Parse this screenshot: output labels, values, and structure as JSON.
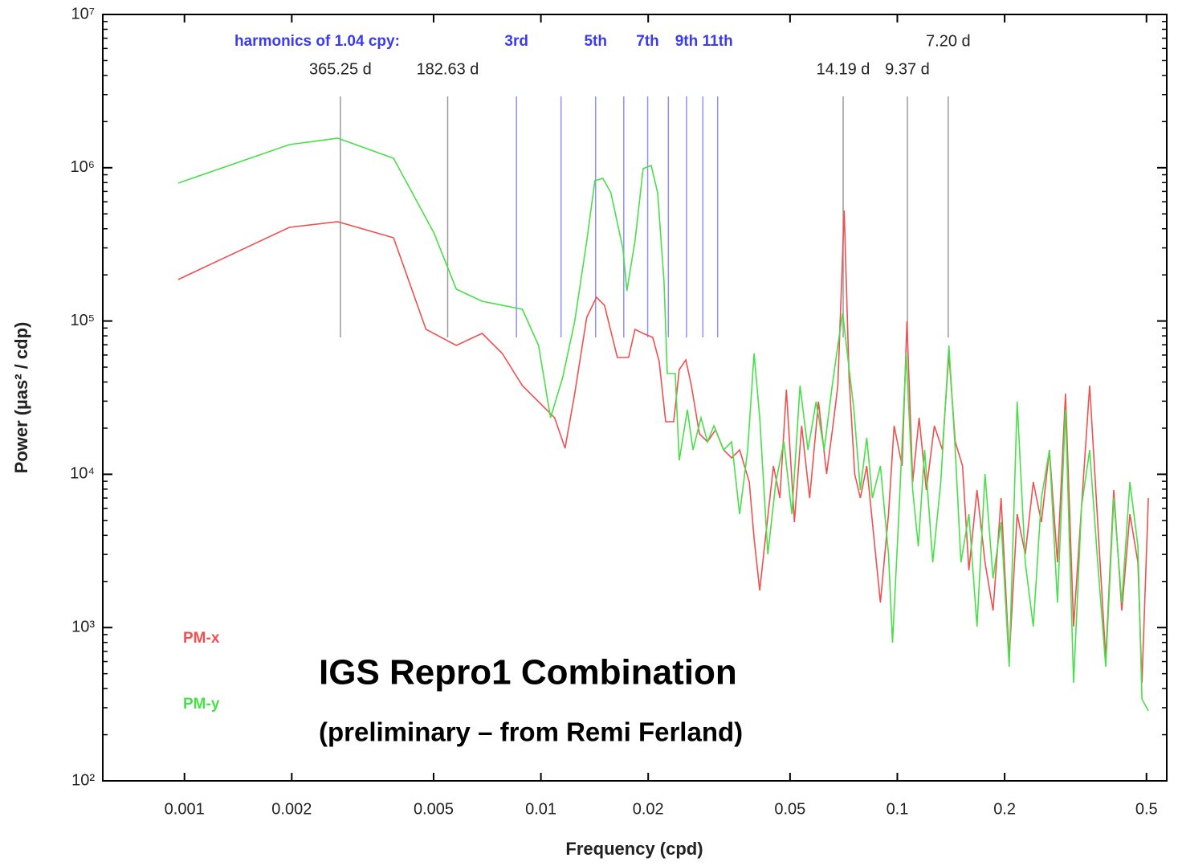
{
  "chart_data": {
    "type": "line",
    "x_label": "Frequency (cpd)",
    "y_label": "Power (µas² / cdp)",
    "xscale": "log",
    "yscale": "log",
    "grid": false,
    "legend": "lower left",
    "xlim": [
      0.00059,
      0.57
    ],
    "ylim": [
      100,
      10000000
    ],
    "xticks": [
      0.001,
      0.002,
      0.005,
      0.01,
      0.02,
      0.05,
      0.1,
      0.2,
      0.5
    ],
    "yticks": [
      {
        "value": 100,
        "label": "10²"
      },
      {
        "value": 1000,
        "label": "10³"
      },
      {
        "value": 10000,
        "label": "10⁴"
      },
      {
        "value": 100000,
        "label": "10⁵"
      },
      {
        "value": 1000000,
        "label": "10⁶"
      },
      {
        "value": 10000000,
        "label": "10⁷"
      }
    ],
    "annotations": [
      "IGS Repro1 Combination",
      "(preliminary – from Remi Ferland)"
    ],
    "ref_lines": {
      "color": "#9a9a9a",
      "lines": [
        {
          "x": 0.002738,
          "label": "365.25 d"
        },
        {
          "x": 0.005476,
          "label": "182.63 d"
        },
        {
          "x": 0.07047,
          "label": "14.19 d"
        },
        {
          "x": 0.1067,
          "label": "9.37 d"
        },
        {
          "x": 0.1389,
          "label": "7.20 d"
        }
      ]
    },
    "harmonics": {
      "title": "harmonics of 1.04 cpy:",
      "color": "#8f8fff",
      "x": [
        0.00854,
        0.01139,
        0.01424,
        0.01708,
        0.01993,
        0.02278,
        0.02562,
        0.02847,
        0.03132
      ],
      "labels": [
        "3rd",
        null,
        "5th",
        null,
        "7th",
        null,
        "9th",
        null,
        "11th"
      ]
    },
    "series": [
      {
        "name": "PM-x",
        "color": "#f05050",
        "x": [
          0.00096,
          0.00197,
          0.00269,
          0.00386,
          0.00476,
          0.00579,
          0.00684,
          0.00779,
          0.00887,
          0.01093,
          0.01169,
          0.01244,
          0.01345,
          0.01432,
          0.01508,
          0.01639,
          0.01762,
          0.01837,
          0.01935,
          0.0206,
          0.02147,
          0.02239,
          0.02358,
          0.02445,
          0.0255,
          0.02644,
          0.02785,
          0.02934,
          0.0309,
          0.03254,
          0.03428,
          0.03611,
          0.03843,
          0.03965,
          0.04111,
          0.04264,
          0.04492,
          0.04683,
          0.04882,
          0.05142,
          0.05388,
          0.05675,
          0.0601,
          0.06331,
          0.06599,
          0.06808,
          0.07096,
          0.07321,
          0.07592,
          0.07874,
          0.08208,
          0.08645,
          0.08966,
          0.09446,
          0.09795,
          0.1031,
          0.1064,
          0.1104,
          0.1151,
          0.1206,
          0.127,
          0.1338,
          0.1395,
          0.1454,
          0.1524,
          0.1588,
          0.1673,
          0.1762,
          0.1856,
          0.1955,
          0.206,
          0.2169,
          0.2285,
          0.2407,
          0.2536,
          0.2671,
          0.2813,
          0.2963,
          0.3122,
          0.3288,
          0.3464,
          0.3649,
          0.3843,
          0.4048,
          0.4264,
          0.4492,
          0.4731,
          0.4856,
          0.5061
        ],
        "values": [
          186400,
          408500,
          444500,
          349100,
          88220,
          69290,
          83050,
          61420,
          37900,
          23390,
          14780,
          33590,
          105700,
          142900,
          126700,
          57820,
          57820,
          88220,
          83050,
          78180,
          54430,
          22020,
          22020,
          48240,
          55760,
          37900,
          18370,
          16290,
          19520,
          14430,
          12790,
          14430,
          8907,
          3826,
          1746,
          3826,
          11340,
          6998,
          35680,
          4871,
          20730,
          6998,
          29770,
          10050,
          20730,
          37900,
          526200,
          42760,
          10050,
          6998,
          11340,
          3392,
          1457,
          5495,
          20730,
          11340,
          99520,
          8907,
          23390,
          7895,
          20730,
          14430,
          61420,
          16290,
          11340,
          2362,
          7895,
          2665,
          1291,
          6998,
          626,
          5495,
          3006,
          8907,
          4871,
          14430,
          2665,
          33590,
          1015,
          6202,
          37900,
          4871,
          626,
          7895,
          1291,
          5495,
          2665,
          436,
          6998
        ]
      },
      {
        "name": "PM-y",
        "color": "#48e048",
        "x": [
          0.00096,
          0.00197,
          0.00269,
          0.00386,
          0.00501,
          0.00579,
          0.00684,
          0.00842,
          0.00887,
          0.00985,
          0.01064,
          0.01151,
          0.01244,
          0.01345,
          0.01417,
          0.01492,
          0.01572,
          0.01699,
          0.01743,
          0.01837,
          0.01935,
          0.02039,
          0.02126,
          0.02215,
          0.02262,
          0.02382,
          0.02445,
          0.02576,
          0.02671,
          0.02814,
          0.02934,
          0.03058,
          0.03254,
          0.03428,
          0.03611,
          0.03803,
          0.03965,
          0.04111,
          0.04331,
          0.04563,
          0.04806,
          0.05062,
          0.05332,
          0.05615,
          0.05916,
          0.06232,
          0.06565,
          0.06808,
          0.07023,
          0.07283,
          0.07553,
          0.07874,
          0.08208,
          0.08511,
          0.08966,
          0.09446,
          0.09694,
          0.101,
          0.1059,
          0.1104,
          0.1145,
          0.1193,
          0.1257,
          0.1324,
          0.1395,
          0.1454,
          0.1508,
          0.1588,
          0.1673,
          0.1762,
          0.1856,
          0.1955,
          0.206,
          0.2169,
          0.2285,
          0.2407,
          0.2536,
          0.2671,
          0.2813,
          0.2963,
          0.3122,
          0.3288,
          0.3464,
          0.3649,
          0.3843,
          0.4048,
          0.4264,
          0.4492,
          0.4731,
          0.4856,
          0.5061
        ],
        "values": [
          793300,
          1416000,
          1559000,
          1153000,
          375400,
          161300,
          134600,
          122200,
          119300,
          69290,
          23390,
          42760,
          99520,
          332700,
          822500,
          852700,
          686400,
          294900,
          157400,
          332700,
          985500,
          1034000,
          686400,
          182000,
          45420,
          45420,
          12330,
          26390,
          14430,
          23390,
          16290,
          20730,
          14430,
          16290,
          5495,
          14430,
          61420,
          23390,
          3006,
          8907,
          16290,
          5495,
          37900,
          14430,
          29770,
          14430,
          37900,
          69290,
          112300,
          54430,
          26390,
          7895,
          17300,
          6998,
          11340,
          3006,
          797,
          5495,
          61420,
          7895,
          3392,
          14430,
          2665,
          8907,
          69290,
          14430,
          2665,
          5495,
          1015,
          10050,
          2094,
          4871,
          555,
          29770,
          2665,
          1015,
          6998,
          14430,
          1457,
          26390,
          436,
          6202,
          14430,
          2665,
          555,
          6998,
          1457,
          8907,
          3392,
          342,
          286
        ]
      }
    ]
  }
}
